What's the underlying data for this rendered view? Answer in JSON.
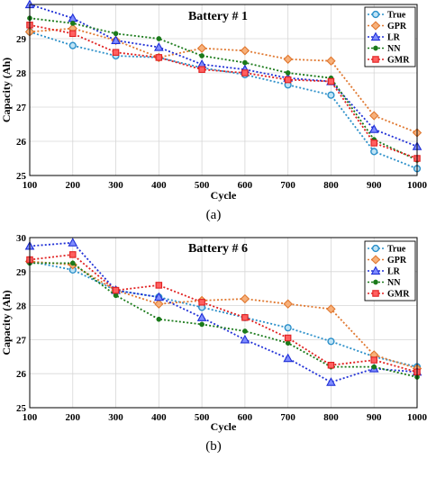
{
  "chart_data": [
    {
      "type": "line",
      "title": "Battery # 1",
      "caption": "(a)",
      "xlabel": "Cycle",
      "ylabel": "Capacity (Ah)",
      "categories": [
        "100",
        "200",
        "300",
        "400",
        "500",
        "600",
        "700",
        "800",
        "900",
        "1000"
      ],
      "ylim": [
        25,
        30
      ],
      "yticks": [
        "25",
        "26",
        "27",
        "28",
        "29"
      ],
      "grid": true,
      "legend": "top-right",
      "series": [
        {
          "name": "True",
          "color": "#2a8fc9",
          "marker": "circle",
          "values": [
            29.2,
            28.8,
            28.5,
            28.45,
            28.15,
            27.95,
            27.65,
            27.35,
            25.7,
            25.2
          ]
        },
        {
          "name": "GPR",
          "color": "#e07830",
          "marker": "diamond",
          "values": [
            29.2,
            29.3,
            28.95,
            28.45,
            28.72,
            28.65,
            28.4,
            28.35,
            26.75,
            26.25
          ]
        },
        {
          "name": "LR",
          "color": "#1f2fd6",
          "marker": "triangle",
          "values": [
            30.0,
            29.6,
            28.95,
            28.75,
            28.25,
            28.1,
            27.85,
            27.75,
            26.35,
            25.85
          ]
        },
        {
          "name": "NN",
          "color": "#1a7a1a",
          "marker": "dot",
          "values": [
            29.6,
            29.45,
            29.15,
            29.0,
            28.5,
            28.3,
            28.0,
            27.85,
            26.05,
            25.45
          ]
        },
        {
          "name": "GMR",
          "color": "#e02020",
          "marker": "square",
          "values": [
            29.4,
            29.15,
            28.6,
            28.45,
            28.1,
            28.0,
            27.8,
            27.75,
            25.95,
            25.5
          ]
        }
      ]
    },
    {
      "type": "line",
      "title": "Battery # 6",
      "caption": "(b)",
      "xlabel": "Cycle",
      "ylabel": "Capacity (Ah)",
      "categories": [
        "100",
        "200",
        "300",
        "400",
        "500",
        "600",
        "700",
        "800",
        "900",
        "1000"
      ],
      "ylim": [
        25,
        30
      ],
      "yticks": [
        "25",
        "26",
        "27",
        "28",
        "29",
        "30"
      ],
      "grid": true,
      "legend": "top-right",
      "series": [
        {
          "name": "True",
          "color": "#2a8fc9",
          "marker": "circle",
          "values": [
            29.3,
            29.05,
            28.45,
            28.25,
            27.95,
            27.65,
            27.35,
            26.95,
            26.5,
            26.2
          ]
        },
        {
          "name": "GPR",
          "color": "#e07830",
          "marker": "diamond",
          "values": [
            29.3,
            29.2,
            28.45,
            28.05,
            28.15,
            28.2,
            28.05,
            27.9,
            26.55,
            26.15
          ]
        },
        {
          "name": "LR",
          "color": "#1f2fd6",
          "marker": "triangle",
          "values": [
            29.75,
            29.85,
            28.45,
            28.25,
            27.65,
            27.0,
            26.45,
            25.75,
            26.15,
            26.05
          ]
        },
        {
          "name": "NN",
          "color": "#1a7a1a",
          "marker": "dot",
          "values": [
            29.25,
            29.25,
            28.3,
            27.6,
            27.45,
            27.25,
            26.9,
            26.2,
            26.2,
            25.9
          ]
        },
        {
          "name": "GMR",
          "color": "#e02020",
          "marker": "square",
          "values": [
            29.35,
            29.5,
            28.45,
            28.6,
            28.1,
            27.65,
            27.05,
            26.25,
            26.4,
            26.05
          ]
        }
      ]
    }
  ]
}
